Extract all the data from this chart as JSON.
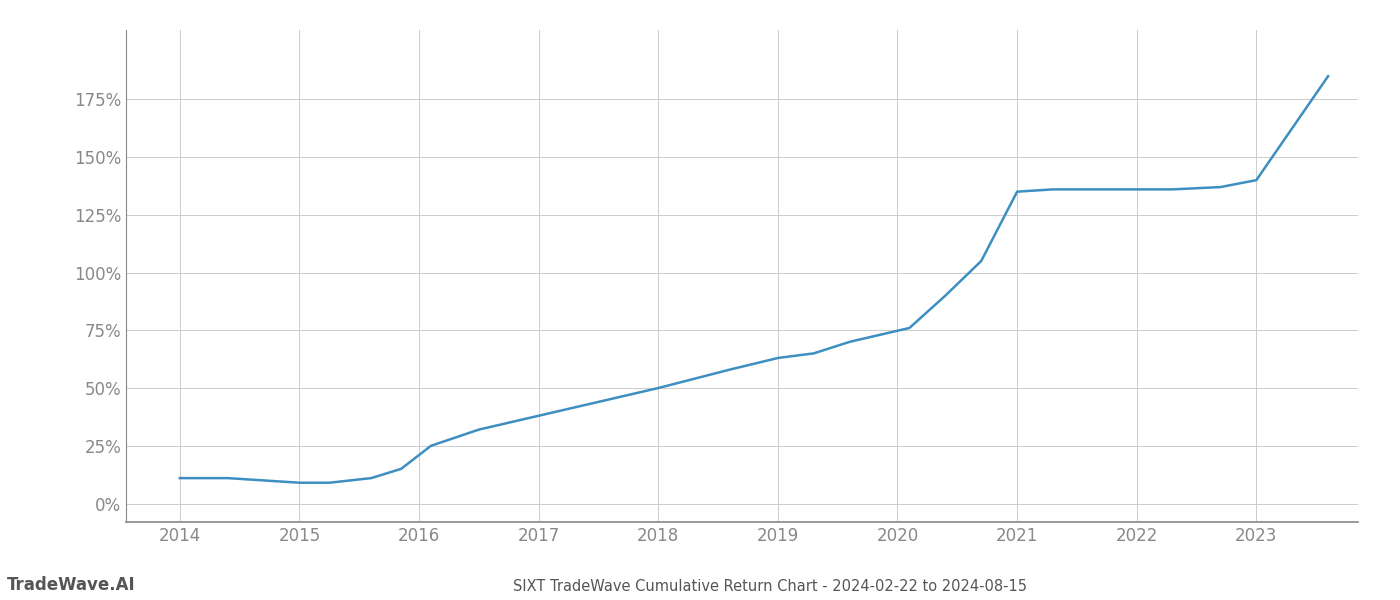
{
  "title": "SIXT TradeWave Cumulative Return Chart - 2024-02-22 to 2024-08-15",
  "watermark": "TradeWave.AI",
  "x_values": [
    2014.0,
    2014.4,
    2015.0,
    2015.25,
    2015.6,
    2015.85,
    2016.1,
    2016.5,
    2017.0,
    2017.5,
    2018.0,
    2018.3,
    2018.6,
    2019.0,
    2019.3,
    2019.6,
    2019.85,
    2020.1,
    2020.4,
    2020.7,
    2021.0,
    2021.3,
    2021.6,
    2022.0,
    2022.3,
    2022.7,
    2023.0,
    2023.6
  ],
  "y_values": [
    11,
    11,
    9,
    9,
    11,
    15,
    25,
    32,
    38,
    44,
    50,
    54,
    58,
    63,
    65,
    70,
    73,
    76,
    90,
    105,
    135,
    136,
    136,
    136,
    136,
    137,
    140,
    185
  ],
  "line_color": "#3d8fc1",
  "background_color": "#ffffff",
  "grid_color": "#cccccc",
  "axis_color": "#888888",
  "title_color": "#555555",
  "watermark_color": "#555555",
  "ylim": [
    -8,
    205
  ],
  "xlim": [
    2013.55,
    2023.85
  ],
  "yticks": [
    0,
    25,
    50,
    75,
    100,
    125,
    150,
    175
  ],
  "xticks": [
    2014,
    2015,
    2016,
    2017,
    2018,
    2019,
    2020,
    2021,
    2022,
    2023
  ],
  "line_width": 1.8,
  "title_fontsize": 10.5,
  "tick_fontsize": 12,
  "watermark_fontsize": 12
}
